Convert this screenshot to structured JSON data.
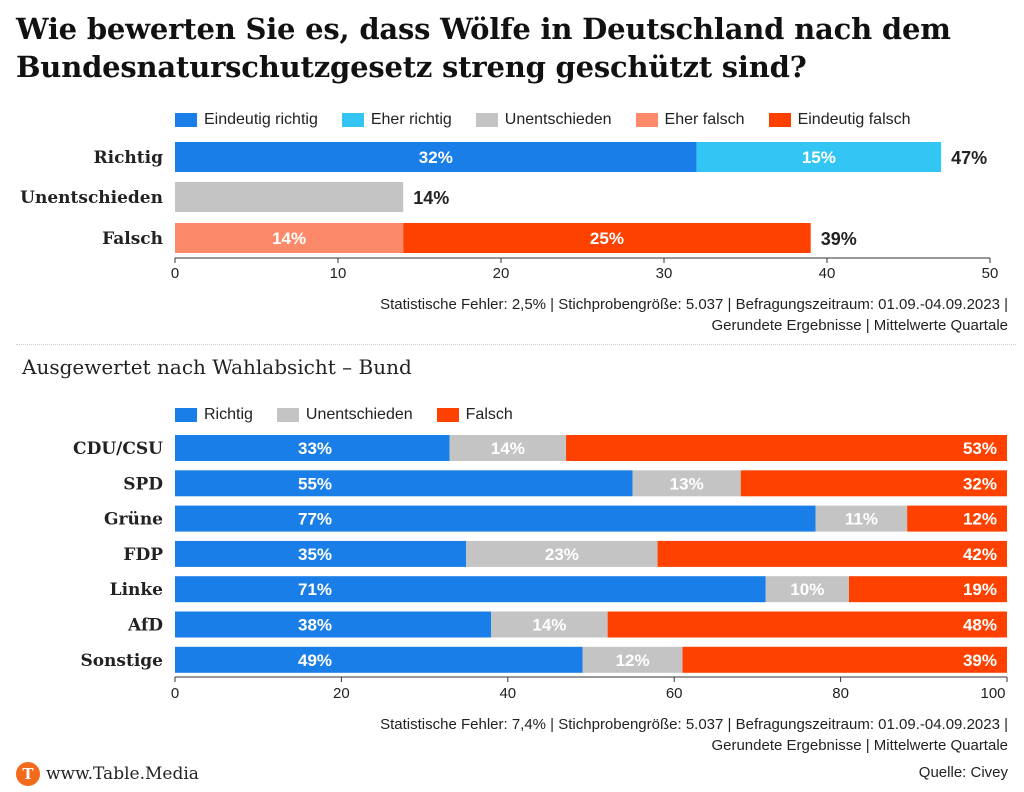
{
  "title": "Wie bewerten Sie es, dass Wölfe in Deutschland nach dem Bundesnaturschutzgesetz streng geschützt sind?",
  "subtitle": "Ausgewertet nach Wahlabsicht – Bund",
  "footnote1": {
    "line1": "Statistische Fehler: 2,5% | Stichprobengröße: 5.037 | Befragungszeitraum: 01.09.-04.09.2023 |",
    "line2": "Gerundete Ergebnisse | Mittelwerte Quartale"
  },
  "footnote2": {
    "line1": "Statistische Fehler: 7,4% | Stichprobengröße: 5.037 | Befragungszeitraum: 01.09.-04.09.2023 |",
    "line2": "Gerundete Ergebnisse | Mittelwerte Quartale"
  },
  "brand": {
    "logo_letter": "T",
    "text": "www.Table.Media"
  },
  "source": "Quelle: Civey",
  "colors": {
    "eindeutig_richtig": "#1a7ee8",
    "eher_richtig": "#33c6f4",
    "unentschieden": "#c4c4c4",
    "eher_falsch": "#fc8a6a",
    "eindeutig_falsch": "#ff4100",
    "richtig": "#1a7ee8",
    "falsch": "#ff4100"
  },
  "chart_data": [
    {
      "type": "bar",
      "orientation": "horizontal",
      "stacked": true,
      "categories": [
        "Richtig",
        "Unentschieden",
        "Falsch"
      ],
      "legend": [
        "Eindeutig richtig",
        "Eher richtig",
        "Unentschieden",
        "Eher falsch",
        "Eindeutig falsch"
      ],
      "series": [
        {
          "name": "Eindeutig richtig",
          "color": "#1a7ee8",
          "values": [
            32,
            0,
            0
          ]
        },
        {
          "name": "Eher richtig",
          "color": "#33c6f4",
          "values": [
            15,
            0,
            0
          ]
        },
        {
          "name": "Unentschieden",
          "color": "#c4c4c4",
          "values": [
            0,
            14,
            0
          ]
        },
        {
          "name": "Eher falsch",
          "color": "#fc8a6a",
          "values": [
            0,
            0,
            14
          ]
        },
        {
          "name": "Eindeutig falsch",
          "color": "#ff4100",
          "values": [
            0,
            0,
            25
          ]
        }
      ],
      "segment_labels": [
        [
          "32%",
          "15%"
        ],
        [],
        [
          "14%",
          "25%"
        ]
      ],
      "totals": [
        "47%",
        "14%",
        "39%"
      ],
      "xlim": [
        0,
        50
      ],
      "xticks": [
        "0",
        "10",
        "20",
        "30",
        "40",
        "50"
      ],
      "legend_position": "top"
    },
    {
      "type": "bar",
      "orientation": "horizontal",
      "stacked": true,
      "categories": [
        "CDU/CSU",
        "SPD",
        "Grüne",
        "FDP",
        "Linke",
        "AfD",
        "Sonstige"
      ],
      "legend": [
        "Richtig",
        "Unentschieden",
        "Falsch"
      ],
      "series": [
        {
          "name": "Richtig",
          "color": "#1a7ee8",
          "values": [
            33,
            55,
            77,
            35,
            71,
            38,
            49
          ]
        },
        {
          "name": "Unentschieden",
          "color": "#c4c4c4",
          "values": [
            14,
            13,
            11,
            23,
            10,
            14,
            12
          ]
        },
        {
          "name": "Falsch",
          "color": "#ff4100",
          "values": [
            53,
            32,
            12,
            42,
            19,
            48,
            39
          ]
        }
      ],
      "xlim": [
        0,
        100
      ],
      "xticks": [
        "0",
        "20",
        "40",
        "60",
        "80",
        "100"
      ],
      "legend_position": "top"
    }
  ]
}
